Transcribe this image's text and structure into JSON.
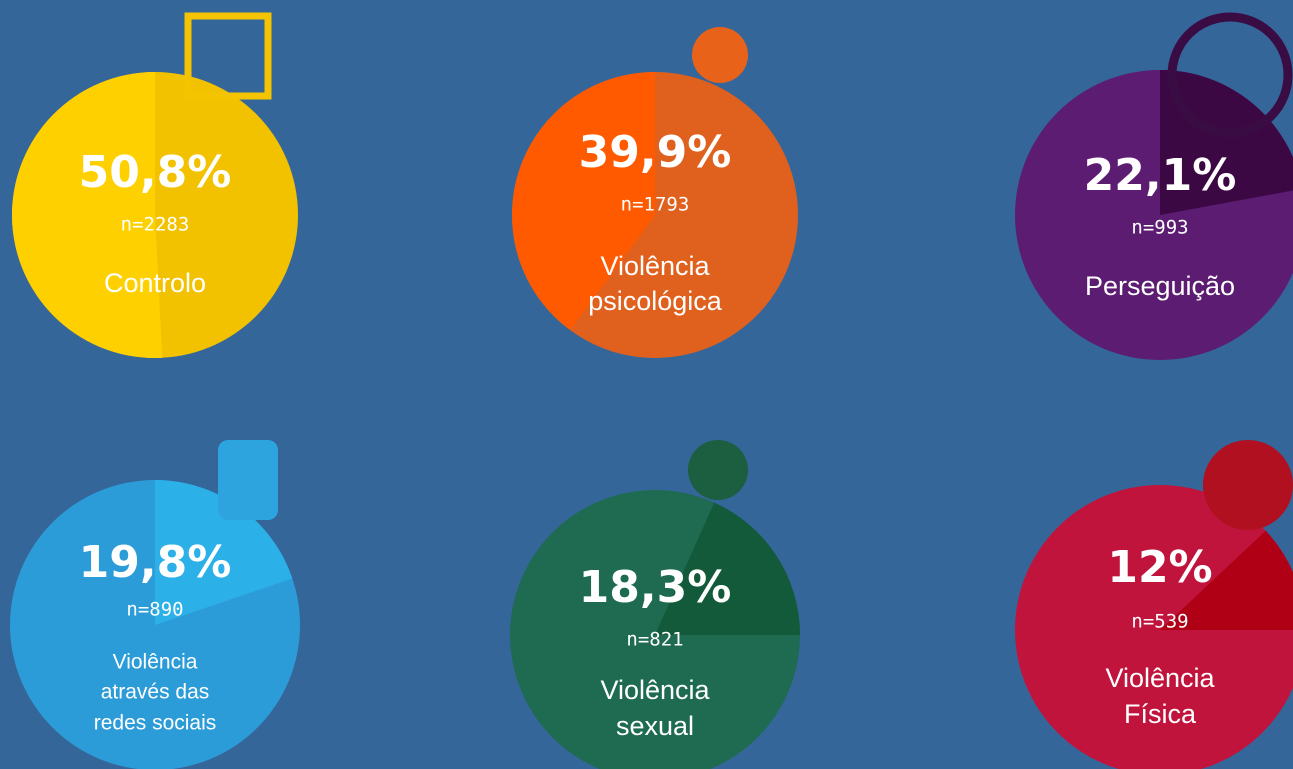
{
  "chart_data": [
    {
      "type": "pie",
      "values": [
        50.8
      ],
      "value_labels": [
        "50,8%"
      ],
      "n_label": "n=2283",
      "label_lines": [
        "Controlo"
      ],
      "color": "#f2c200",
      "wedge_color": "#ffd000"
    },
    {
      "type": "pie",
      "values": [
        39.9
      ],
      "value_labels": [
        "39,9%"
      ],
      "n_label": "n=1793",
      "label_lines": [
        "Violência",
        "psicológica"
      ],
      "color": "#e0601e",
      "wedge_color": "#ff5a00"
    },
    {
      "type": "pie",
      "values": [
        22.1
      ],
      "value_labels": [
        "22,1%"
      ],
      "n_label": "n=993",
      "label_lines": [
        "Perseguição"
      ],
      "color": "#5c1c72",
      "wedge_color": "#3c0844"
    },
    {
      "type": "pie",
      "values": [
        19.8
      ],
      "value_labels": [
        "19,8%"
      ],
      "n_label": "n=890",
      "label_lines": [
        "Violência",
        "através das",
        "redes sociais"
      ],
      "color": "#2c9cd8",
      "wedge_color": "#2bb0e8"
    },
    {
      "type": "pie",
      "values": [
        18.3
      ],
      "value_labels": [
        "18,3%"
      ],
      "n_label": "n=821",
      "label_lines": [
        "Violência",
        "sexual"
      ],
      "color": "#1e6b52",
      "wedge_color": "#135a3a"
    },
    {
      "type": "pie",
      "values": [
        12
      ],
      "value_labels": [
        "12%"
      ],
      "n_label": "n=539",
      "label_lines": [
        "Violência",
        "Física"
      ],
      "color": "#c0143c",
      "wedge_color": "#b00016"
    }
  ]
}
